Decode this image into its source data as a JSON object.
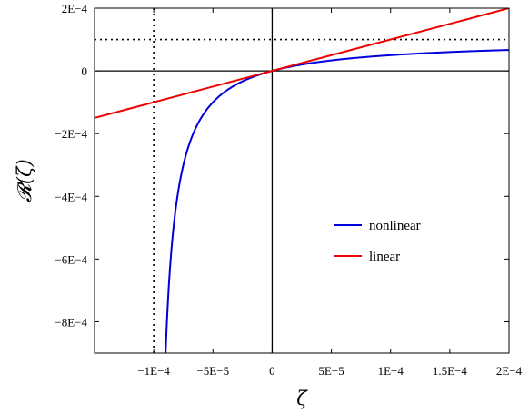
{
  "chart_data": {
    "type": "line",
    "title": "",
    "xlabel": "ζ",
    "ylabel": "𝓡(ζ)",
    "xlim": [
      -0.00015,
      0.0002
    ],
    "ylim": [
      -0.0009,
      0.0002
    ],
    "grid": false,
    "legend_position": "center-right",
    "x_ticks": [
      {
        "value": -0.0001,
        "label": "−1E−4"
      },
      {
        "value": -5e-05,
        "label": "−5E−5"
      },
      {
        "value": 0,
        "label": "0"
      },
      {
        "value": 5e-05,
        "label": "5E−5"
      },
      {
        "value": 0.0001,
        "label": "1E−4"
      },
      {
        "value": 0.00015,
        "label": "1.5E−4"
      },
      {
        "value": 0.0002,
        "label": "2E−4"
      }
    ],
    "y_ticks": [
      {
        "value": 0.0002,
        "label": "2E−4"
      },
      {
        "value": 0,
        "label": "0"
      },
      {
        "value": -0.0002,
        "label": "−2E−4"
      },
      {
        "value": -0.0004,
        "label": "−4E−4"
      },
      {
        "value": -0.0006,
        "label": "−6E−4"
      },
      {
        "value": -0.0008,
        "label": "−8E−4"
      }
    ],
    "series": [
      {
        "name": "nonlinear",
        "color": "#0000dd",
        "x": [
          -9e-05,
          -8.5e-05,
          -8e-05,
          -7e-05,
          -6e-05,
          -5e-05,
          -4e-05,
          -3e-05,
          -2e-05,
          -1e-05,
          0,
          1e-05,
          2e-05,
          4e-05,
          6e-05,
          8e-05,
          0.0001,
          0.00012,
          0.00014,
          0.00016,
          0.00018,
          0.0002
        ],
        "y": [
          -0.0009,
          -0.000567,
          -0.0004,
          -0.000233,
          -0.00015,
          -0.0001,
          -6.67e-05,
          -4.29e-05,
          -2.5e-05,
          -1.11e-05,
          0,
          9.1e-06,
          1.67e-05,
          2.86e-05,
          3.75e-05,
          4.44e-05,
          5e-05,
          5.45e-05,
          5.83e-05,
          6.15e-05,
          6.43e-05,
          6.67e-05
        ]
      },
      {
        "name": "linear",
        "color": "#ee0000",
        "x": [
          -0.00015,
          0.0002
        ],
        "y": [
          -0.00015,
          0.0002
        ]
      }
    ],
    "reference_lines": [
      {
        "orientation": "vertical",
        "value": -0.0001,
        "style": "dotted",
        "color": "#000000"
      },
      {
        "orientation": "horizontal",
        "value": 0.0001,
        "style": "dotted",
        "color": "#000000"
      },
      {
        "orientation": "vertical",
        "value": 0,
        "style": "solid",
        "color": "#000000"
      },
      {
        "orientation": "horizontal",
        "value": 0,
        "style": "solid",
        "color": "#000000"
      }
    ]
  }
}
